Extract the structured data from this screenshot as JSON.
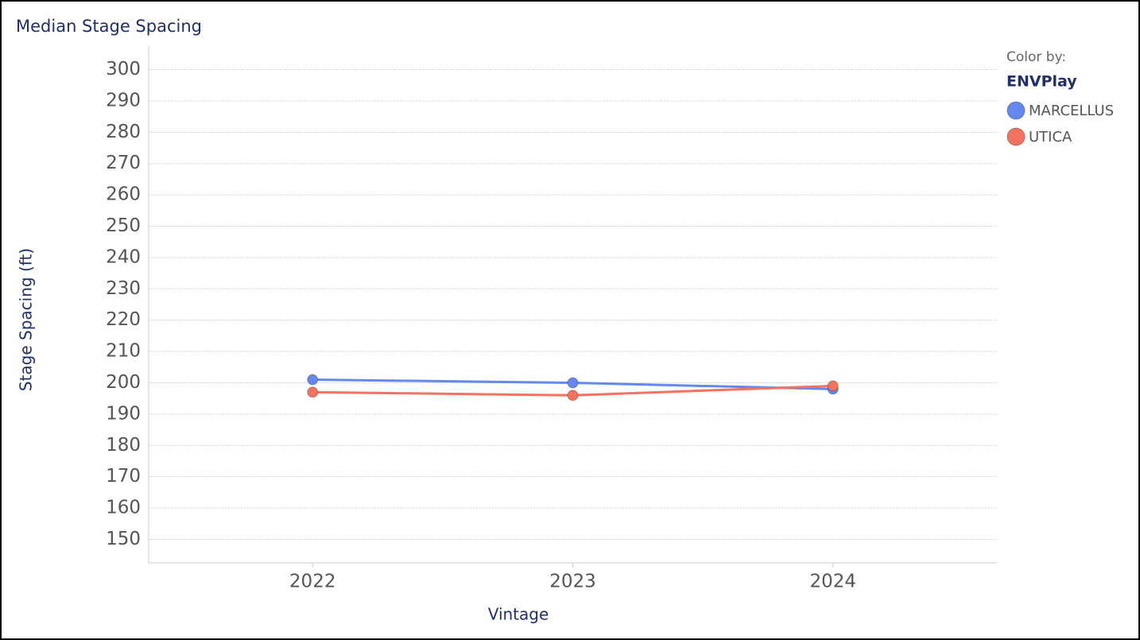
{
  "chart_data": {
    "type": "line",
    "title": "Median Stage Spacing",
    "x_label": "Vintage",
    "y_label": "Stage Spacing (ft)",
    "categories": [
      "2022",
      "2023",
      "2024"
    ],
    "series": [
      {
        "name": "MARCELLUS",
        "color": "#6488f0",
        "values": [
          201,
          200,
          198
        ]
      },
      {
        "name": "UTICA",
        "color": "#f4735e",
        "values": [
          197,
          196,
          199
        ]
      }
    ],
    "ylim": [
      142.5,
      307.5
    ],
    "yticks": [
      150,
      160,
      170,
      180,
      190,
      200,
      210,
      220,
      230,
      240,
      250,
      260,
      270,
      280,
      290,
      300
    ],
    "grid": true,
    "legend": {
      "title": "Color by:",
      "field": "ENVPlay",
      "position": "right"
    }
  }
}
